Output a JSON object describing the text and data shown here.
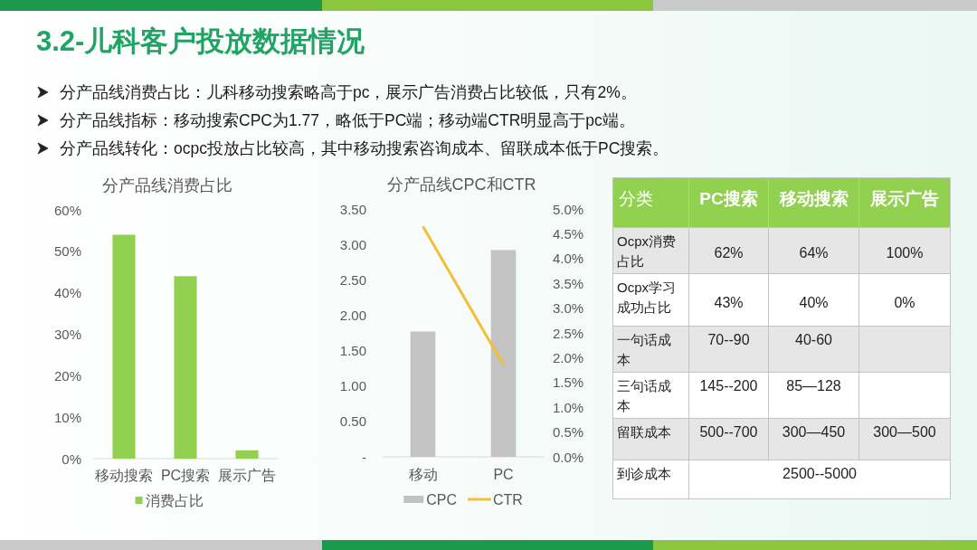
{
  "chart_data": [
    {
      "type": "other",
      "title": "3.2-儿科客户投放数据情况",
      "annotations": [
        "分产品线消费占比：儿科移动搜索略高于pc，展示广告消费占比较低，只有2%。",
        "分产品线指标：移动搜索CPC为1.77，略低于PC端；移动端CTR明显高于pc端。",
        "分产品线转化：ocpc投放占比较高，其中移动搜索咨询成本、留联成本低于PC搜索。"
      ]
    },
    {
      "type": "bar",
      "title": "分产品线消费占比",
      "categories": [
        "移动搜索",
        "PC搜索",
        "展示广告"
      ],
      "series": [
        {
          "name": "消费占比",
          "color": "#92d050",
          "values": [
            54,
            44,
            2
          ]
        }
      ],
      "ylim": [
        0,
        60
      ],
      "yticks": [
        {
          "value": 0,
          "label": "0%"
        },
        {
          "value": 10,
          "label": "10%"
        },
        {
          "value": 20,
          "label": "20%"
        },
        {
          "value": 30,
          "label": "30%"
        },
        {
          "value": 40,
          "label": "40%"
        },
        {
          "value": 50,
          "label": "50%"
        },
        {
          "value": 60,
          "label": "60%"
        }
      ],
      "grid": false,
      "legend": "bottom"
    },
    {
      "type": "bar",
      "title": "分产品线CPC和CTR",
      "categories": [
        "移动",
        "PC"
      ],
      "series": [
        {
          "name": "CPC",
          "color": "#c3c3c3",
          "values": [
            1.77,
            2.92
          ]
        },
        {
          "name": "CTR",
          "type": "line",
          "axis": "y2",
          "color": "#f2c037",
          "values": [
            4.65,
            1.85
          ]
        }
      ],
      "ylim": [
        0,
        3.5
      ],
      "yticks": [
        {
          "value": 0,
          "label": "-"
        },
        {
          "value": 0.5,
          "label": "0.50"
        },
        {
          "value": 1,
          "label": "1.00"
        },
        {
          "value": 1.5,
          "label": "1.50"
        },
        {
          "value": 2,
          "label": "2.00"
        },
        {
          "value": 2.5,
          "label": "2.50"
        },
        {
          "value": 3,
          "label": "3.00"
        },
        {
          "value": 3.5,
          "label": "3.50"
        }
      ],
      "y2lim": [
        0,
        5
      ],
      "y2ticks": [
        {
          "value": 0,
          "label": "0.0%"
        },
        {
          "value": 0.5,
          "label": "0.5%"
        },
        {
          "value": 1,
          "label": "1.0%"
        },
        {
          "value": 1.5,
          "label": "1.5%"
        },
        {
          "value": 2,
          "label": "2.0%"
        },
        {
          "value": 2.5,
          "label": "2.5%"
        },
        {
          "value": 3,
          "label": "3.0%"
        },
        {
          "value": 3.5,
          "label": "3.5%"
        },
        {
          "value": 4,
          "label": "4.0%"
        },
        {
          "value": 4.5,
          "label": "4.5%"
        },
        {
          "value": 5,
          "label": "5.0%"
        }
      ],
      "grid": false,
      "legend": "bottom"
    },
    {
      "type": "other",
      "categories": [
        "分类",
        "PC搜索",
        "移动搜索",
        "展示广告"
      ],
      "y_categories": [
        "Ocpx消费占比",
        "Ocpx学习成功占比",
        "一句话成本",
        "三句话成本",
        "留联成本",
        "到诊成本"
      ],
      "cell_labels": [
        [
          "62%",
          "64%",
          "100%"
        ],
        [
          "43%",
          "40%",
          "0%"
        ],
        [
          "70--90",
          "40-60",
          null
        ],
        [
          "145--200",
          "85—128",
          null
        ],
        [
          "500--700",
          "300—450",
          "300—500"
        ],
        [
          "2500--5000"
        ]
      ]
    }
  ]
}
